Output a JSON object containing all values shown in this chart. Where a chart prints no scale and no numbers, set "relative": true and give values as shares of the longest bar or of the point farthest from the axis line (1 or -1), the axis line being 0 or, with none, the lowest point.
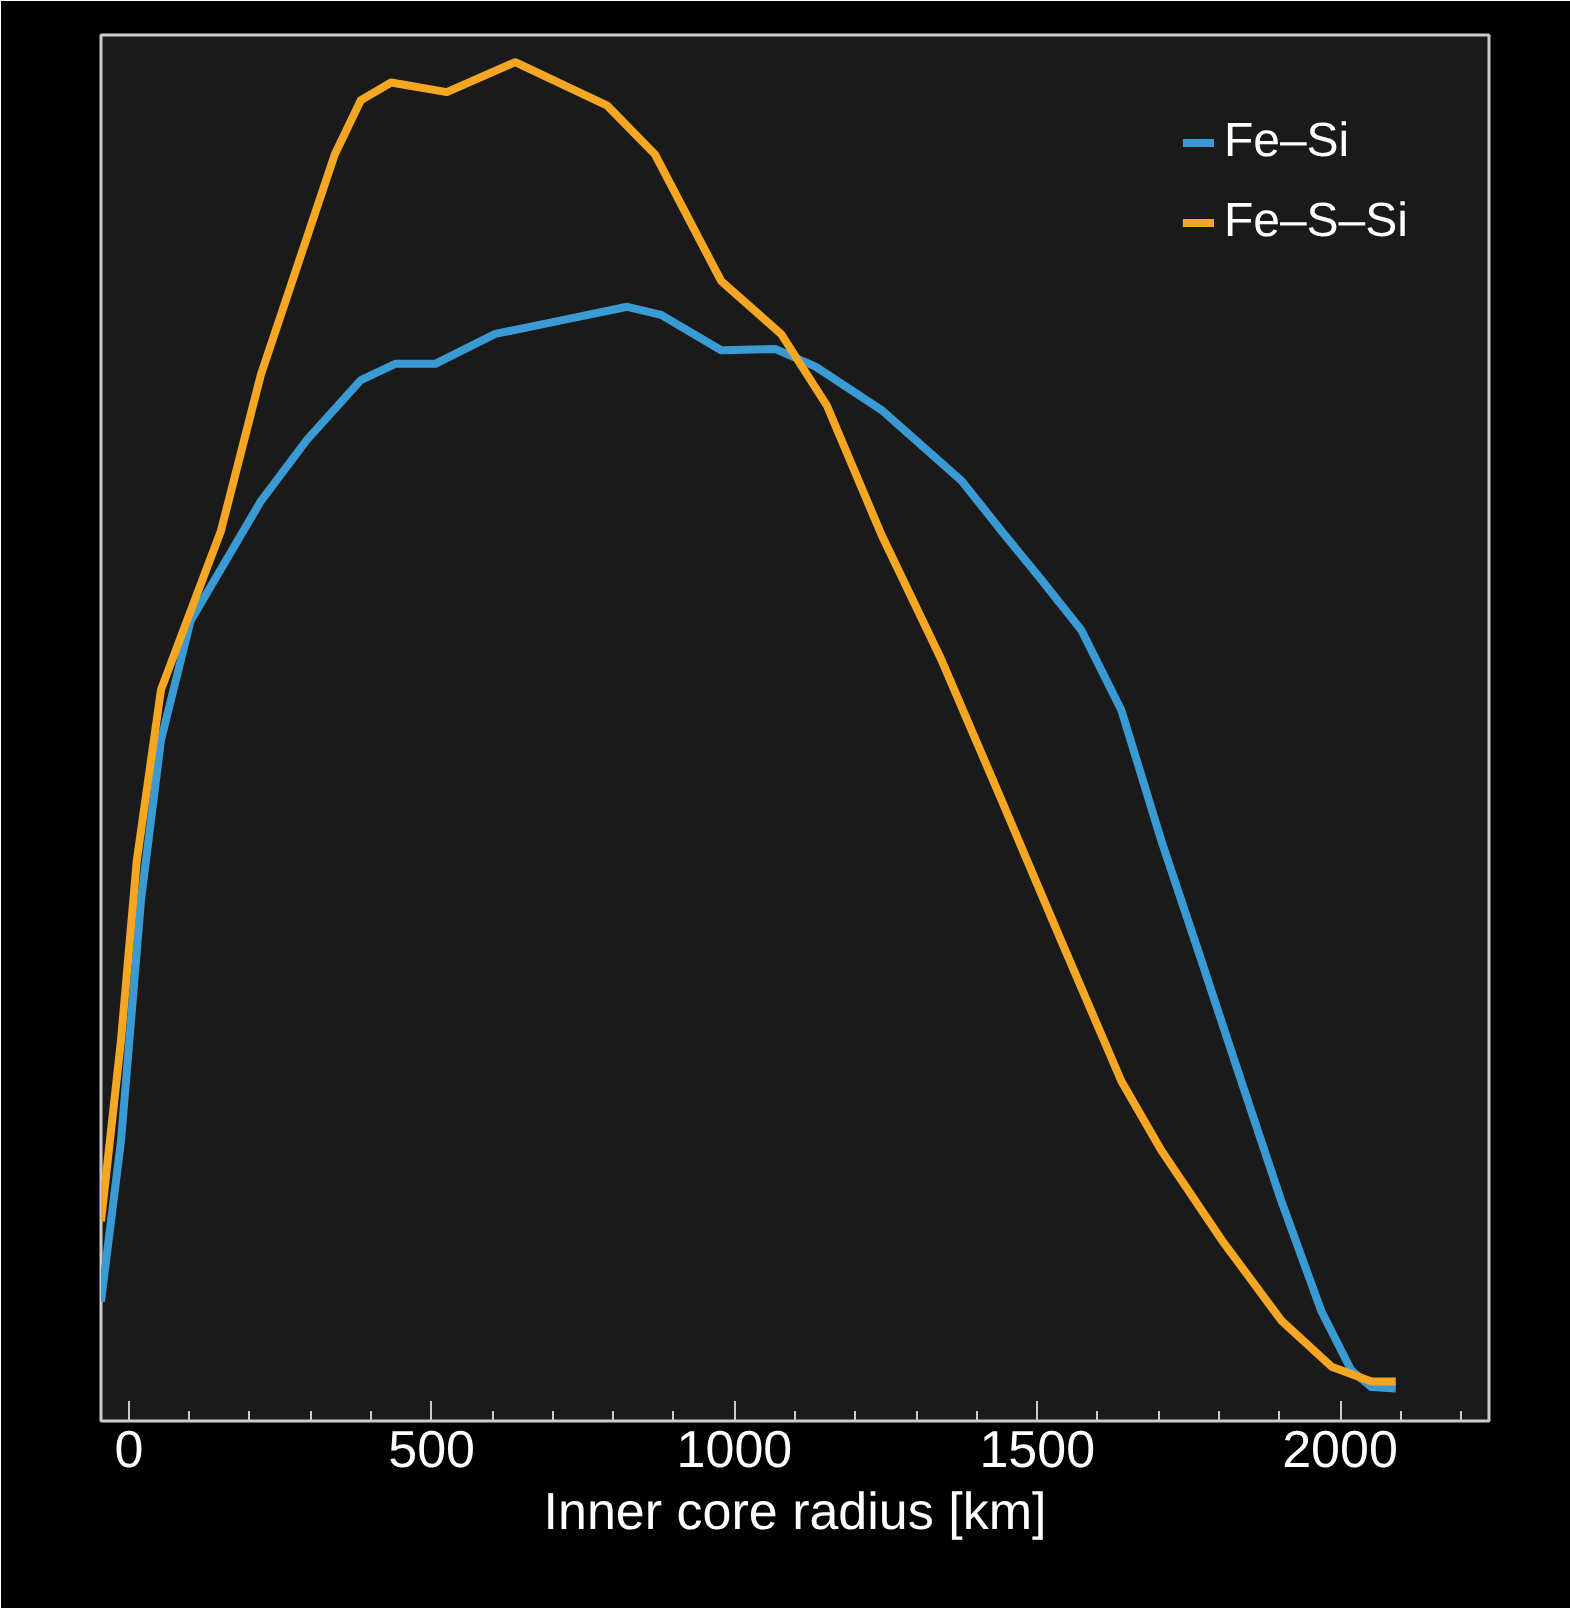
{
  "chart_data": {
    "type": "line",
    "xlabel": "Inner core radius [km]",
    "relative": true,
    "xlim": [
      -46,
      2246
    ],
    "xticks": [
      0,
      {
        "value": 100,
        "label": null
      },
      {
        "value": 200,
        "label": null
      },
      {
        "value": 300,
        "label": null
      },
      {
        "value": 400,
        "label": null
      },
      500,
      {
        "value": 600,
        "label": null
      },
      {
        "value": 700,
        "label": null
      },
      {
        "value": 800,
        "label": null
      },
      {
        "value": 900,
        "label": null
      },
      1000,
      {
        "value": 1100,
        "label": null
      },
      {
        "value": 1200,
        "label": null
      },
      {
        "value": 1300,
        "label": null
      },
      {
        "value": 1400,
        "label": null
      },
      1500,
      {
        "value": 1600,
        "label": null
      },
      {
        "value": 1700,
        "label": null
      },
      {
        "value": 1800,
        "label": null
      },
      {
        "value": 1900,
        "label": null
      },
      2000,
      {
        "value": 2100,
        "label": null
      },
      {
        "value": 2200,
        "label": null
      }
    ],
    "grid": false,
    "legend": "top right",
    "tick_labels": "x",
    "series": [
      {
        "name": "Fe–Si",
        "color": "#3a9bd4",
        "x": [
          -46,
          -13,
          20,
          53,
          102,
          218,
          294,
          383,
          440,
          506,
          605,
          714,
          823,
          879,
          978,
          1067,
          1134,
          1243,
          1375,
          1441,
          1507,
          1573,
          1639,
          1705,
          1771,
          1837,
          1903,
          1969,
          2019,
          2052,
          2092
        ],
        "values": [
          0.088,
          0.206,
          0.383,
          0.501,
          0.589,
          0.677,
          0.722,
          0.766,
          0.778,
          0.778,
          0.8,
          0.81,
          0.82,
          0.814,
          0.788,
          0.789,
          0.776,
          0.744,
          0.692,
          0.655,
          0.619,
          0.582,
          0.523,
          0.427,
          0.339,
          0.25,
          0.162,
          0.081,
          0.037,
          0.025,
          0.024
        ]
      },
      {
        "name": "Fe–S–Si",
        "color": "#f5a623",
        "x": [
          -46,
          -13,
          13,
          53,
          96,
          152,
          218,
          340,
          383,
          433,
          525,
          638,
          714,
          790,
          869,
          978,
          1077,
          1153,
          1243,
          1342,
          1441,
          1540,
          1639,
          1705,
          1805,
          1903,
          1986,
          2052,
          2092
        ],
        "values": [
          0.147,
          0.28,
          0.412,
          0.538,
          0.589,
          0.655,
          0.77,
          0.932,
          0.972,
          0.985,
          0.978,
          1.0,
          0.984,
          0.968,
          0.932,
          0.839,
          0.8,
          0.747,
          0.652,
          0.56,
          0.457,
          0.353,
          0.25,
          0.199,
          0.133,
          0.074,
          0.04,
          0.029,
          0.029
        ]
      }
    ]
  }
}
